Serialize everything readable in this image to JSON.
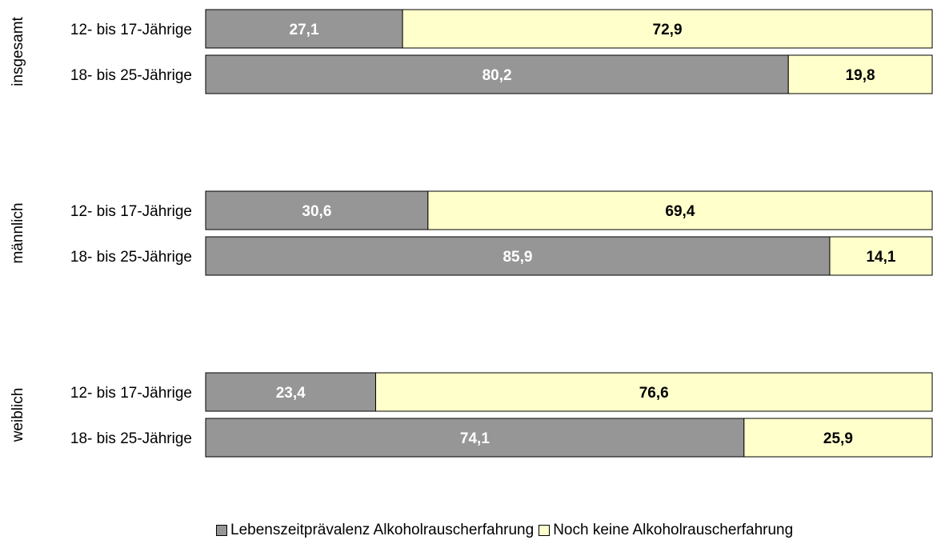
{
  "chart_data": {
    "type": "bar",
    "orientation": "horizontal",
    "stacked": true,
    "percent_scale": true,
    "xlim": [
      0,
      100
    ],
    "axis_visible": false,
    "grid": false,
    "legend_position": "bottom",
    "groups": [
      {
        "label": "insgesamt",
        "categories": [
          "12- bis 17-Jährige",
          "18- bis 25-Jährige"
        ],
        "values": [
          [
            27.1,
            72.9
          ],
          [
            80.2,
            19.8
          ]
        ],
        "value_labels": [
          [
            "27,1",
            "72,9"
          ],
          [
            "80,2",
            "19,8"
          ]
        ]
      },
      {
        "label": "männlich",
        "categories": [
          "12- bis 17-Jährige",
          "18- bis 25-Jährige"
        ],
        "values": [
          [
            30.6,
            69.4
          ],
          [
            85.9,
            14.1
          ]
        ],
        "value_labels": [
          [
            "30,6",
            "69,4"
          ],
          [
            "85,9",
            "14,1"
          ]
        ]
      },
      {
        "label": "weiblich",
        "categories": [
          "12- bis 17-Jährige",
          "18- bis 25-Jährige"
        ],
        "values": [
          [
            23.4,
            76.6
          ],
          [
            74.1,
            25.9
          ]
        ],
        "value_labels": [
          [
            "23,4",
            "76,6"
          ],
          [
            "74,1",
            "25,9"
          ]
        ]
      }
    ],
    "series": [
      {
        "name": "Lebenszeitprävalenz Alkoholrauscherfahrung",
        "color": "#969696",
        "label_color": "#ffffff"
      },
      {
        "name": "Noch keine Alkoholrauscherfahrung",
        "color": "#ffffcc",
        "label_color": "#000000"
      }
    ]
  }
}
